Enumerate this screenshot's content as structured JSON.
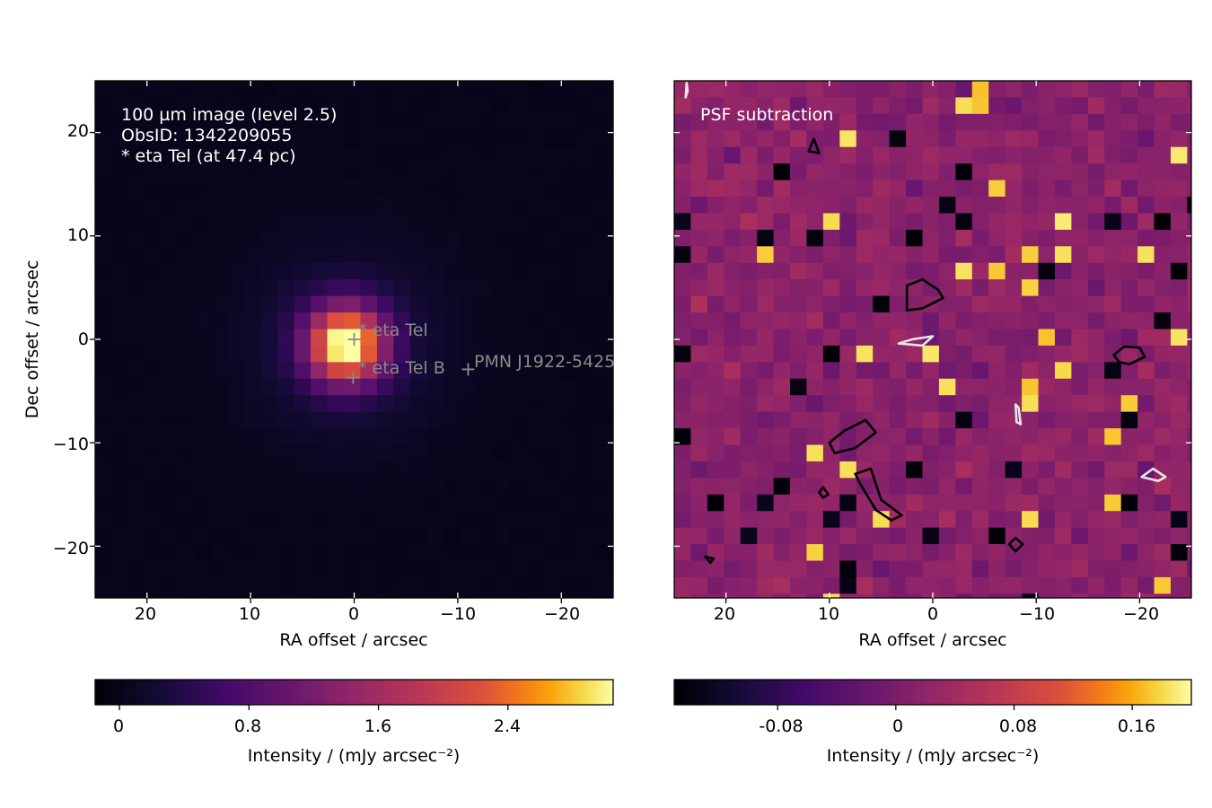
{
  "chart_data": [
    {
      "type": "heatmap",
      "panel": "left",
      "xlabel": "RA offset / arcsec",
      "ylabel": "Dec offset / arcsec",
      "xlim": [
        25,
        -25
      ],
      "ylim": [
        -25,
        25
      ],
      "xticks": [
        20,
        10,
        0,
        -10,
        -20
      ],
      "yticks": [
        20,
        10,
        0,
        -10,
        -20
      ],
      "xtick_labels": [
        "20",
        "10",
        "0",
        "−10",
        "−20"
      ],
      "ytick_labels": [
        "20",
        "10",
        "0",
        "−10",
        "−20"
      ],
      "pixel_size_arcsec": 1.6,
      "annotation_lines": [
        "100 µm image (level 2.5)",
        "ObsID: 1342209055",
        "* eta Tel (at 47.4 pc)"
      ],
      "sources": [
        {
          "name": "eta Tel",
          "x": 0,
          "y": 0,
          "label": "* eta Tel"
        },
        {
          "name": "eta Tel B",
          "x": 0.1,
          "y": -3.7,
          "label": "* eta Tel B"
        },
        {
          "name": "PMN J1922-5425",
          "x": -11,
          "y": -2.9,
          "label": "PMN J1922-5425"
        }
      ],
      "peak": {
        "x": 0.8,
        "y": -0.5,
        "value": 2.95
      },
      "colorbar": {
        "label": "Intensity / (mJy arcsec⁻²)",
        "range": [
          -0.15,
          3.05
        ],
        "ticks": [
          0,
          0.8,
          1.6,
          2.4
        ],
        "tick_labels": [
          "0",
          "0.8",
          "1.6",
          "2.4"
        ],
        "colormap": "inferno"
      }
    },
    {
      "type": "heatmap",
      "panel": "right",
      "xlabel": "RA offset / arcsec",
      "xlim": [
        25,
        -25
      ],
      "ylim": [
        -25,
        25
      ],
      "xticks": [
        20,
        10,
        0,
        -10,
        -20
      ],
      "xtick_labels": [
        "20",
        "10",
        "0",
        "−10",
        "−20"
      ],
      "pixel_size_arcsec": 1.6,
      "annotation": "PSF subtraction",
      "colorbar": {
        "label": "Intensity / (mJy arcsec⁻²)",
        "range": [
          -0.15,
          0.2
        ],
        "ticks": [
          -0.08,
          0,
          0.08,
          0.16
        ],
        "tick_labels": [
          "-0.08",
          "0",
          "0.08",
          "0.16"
        ],
        "colormap": "inferno"
      },
      "contours": {
        "black": [
          [
            [
              11.5,
              19.4
            ],
            [
              11.0,
              18.0
            ],
            [
              12.0,
              18.2
            ]
          ],
          [
            [
              2.5,
              5.2
            ],
            [
              1.0,
              5.8
            ],
            [
              -0.5,
              4.8
            ],
            [
              -1.0,
              4.0
            ],
            [
              1.0,
              3.0
            ],
            [
              2.5,
              2.8
            ]
          ],
          [
            [
              10.0,
              -10.0
            ],
            [
              8.5,
              -8.8
            ],
            [
              6.5,
              -7.8
            ],
            [
              5.5,
              -9.0
            ],
            [
              7.5,
              -10.5
            ],
            [
              9.5,
              -11.0
            ]
          ],
          [
            [
              7.5,
              -13.0
            ],
            [
              6.0,
              -12.5
            ],
            [
              5.0,
              -15.5
            ],
            [
              3.0,
              -17.0
            ],
            [
              4.0,
              -17.5
            ],
            [
              5.5,
              -16.5
            ],
            [
              7.0,
              -14.0
            ]
          ],
          [
            [
              -17.5,
              -1.5
            ],
            [
              -18.5,
              -0.7
            ],
            [
              -20.0,
              -0.8
            ],
            [
              -20.5,
              -1.7
            ],
            [
              -19.0,
              -2.4
            ],
            [
              -18.0,
              -2.2
            ]
          ],
          [
            [
              -8.0,
              -19.2
            ],
            [
              -8.7,
              -19.8
            ],
            [
              -8.0,
              -20.5
            ],
            [
              -7.4,
              -19.8
            ]
          ],
          [
            [
              22.0,
              -21.0
            ],
            [
              21.5,
              -21.6
            ],
            [
              21.2,
              -21.2
            ]
          ],
          [
            [
              10.6,
              -14.3
            ],
            [
              10.1,
              -15.0
            ],
            [
              10.6,
              -15.3
            ],
            [
              11.0,
              -14.8
            ]
          ]
        ],
        "white": [
          [
            [
              0.0,
              0.3
            ],
            [
              2.0,
              0.0
            ],
            [
              3.3,
              -0.4
            ],
            [
              1.0,
              -0.6
            ]
          ],
          [
            [
              -8.0,
              -6.3
            ],
            [
              -8.3,
              -6.6
            ],
            [
              -8.5,
              -8.2
            ],
            [
              -8.1,
              -8.0
            ]
          ],
          [
            [
              -21.3,
              -12.5
            ],
            [
              -20.2,
              -13.3
            ],
            [
              -21.8,
              -13.7
            ],
            [
              -22.5,
              -13.3
            ]
          ],
          [
            [
              23.8,
              24.8
            ],
            [
              23.7,
              24.0
            ],
            [
              23.9,
              23.4
            ]
          ]
        ]
      }
    }
  ]
}
